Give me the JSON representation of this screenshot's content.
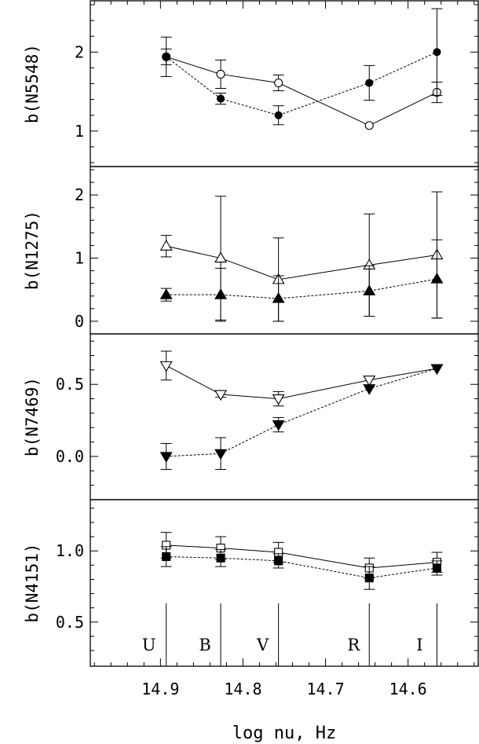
{
  "chart_data": {
    "type": "scatter",
    "xlabel": "log nu, Hz",
    "xlim": [
      14.985,
      14.515
    ],
    "xticks": [
      "14.9",
      "14.8",
      "14.7",
      "14.6"
    ],
    "xtick_values": [
      14.9,
      14.8,
      14.7,
      14.6
    ],
    "x": [
      14.893,
      14.827,
      14.757,
      14.647,
      14.565
    ],
    "bands": [
      "U",
      "B",
      "V",
      "R",
      "I"
    ],
    "line_styles": {
      "open": "solid",
      "filled": "dashed"
    },
    "panels": [
      {
        "ylabel": "b(N5548)",
        "ylim": [
          0.55,
          2.65
        ],
        "yticks": [
          "1",
          "2"
        ],
        "ytick_values": [
          1,
          2
        ],
        "series": [
          {
            "marker": "circle",
            "fill": "open",
            "values": [
              1.94,
              1.72,
              1.61,
              1.07,
              1.49
            ],
            "err": [
              0.25,
              0.18,
              0.1,
              0.0,
              0.13
            ]
          },
          {
            "marker": "circle",
            "fill": "filled",
            "values": [
              1.94,
              1.41,
              1.2,
              1.61,
              2.0
            ],
            "err": [
              0.1,
              0.07,
              0.12,
              0.22,
              0.55
            ]
          }
        ]
      },
      {
        "ylabel": "b(N1275)",
        "ylim": [
          -0.2,
          2.45
        ],
        "yticks": [
          "0",
          "1",
          "2"
        ],
        "ytick_values": [
          0,
          1,
          2
        ],
        "series": [
          {
            "marker": "triangle-up",
            "fill": "open",
            "values": [
              1.19,
              1.0,
              0.66,
              0.89,
              1.05
            ],
            "err": [
              0.17,
              0.98,
              0.66,
              0.81,
              1.0
            ]
          },
          {
            "marker": "triangle-up",
            "fill": "filled",
            "values": [
              0.42,
              0.42,
              0.36,
              0.48,
              0.67
            ],
            "err": [
              0.1,
              0.42,
              0.36,
              0.4,
              0.62
            ]
          }
        ]
      },
      {
        "ylabel": "b(N7469)",
        "ylim": [
          -0.3,
          0.85
        ],
        "yticks": [
          "0.0",
          "0.5"
        ],
        "ytick_values": [
          0.0,
          0.5
        ],
        "series": [
          {
            "marker": "triangle-down",
            "fill": "open",
            "values": [
              0.63,
              0.43,
              0.4,
              0.53,
              0.61
            ],
            "err": [
              0.1,
              0.02,
              0.05,
              0.0,
              0.0
            ]
          },
          {
            "marker": "triangle-down",
            "fill": "filled",
            "values": [
              0.0,
              0.02,
              0.22,
              0.47,
              0.61
            ],
            "err": [
              0.09,
              0.11,
              0.05,
              0.0,
              0.0
            ]
          }
        ]
      },
      {
        "ylabel": "b(N4151)",
        "ylim": [
          0.19,
          1.36
        ],
        "yticks": [
          "0.5",
          "1.0"
        ],
        "ytick_values": [
          0.5,
          1.0
        ],
        "series": [
          {
            "marker": "square",
            "fill": "open",
            "values": [
              1.04,
              1.02,
              0.99,
              0.88,
              0.92
            ],
            "err": [
              0.09,
              0.08,
              0.07,
              0.07,
              0.07
            ]
          },
          {
            "marker": "square",
            "fill": "filled",
            "values": [
              0.96,
              0.95,
              0.93,
              0.81,
              0.88
            ],
            "err": [
              0.07,
              0.06,
              0.05,
              0.08,
              0.05
            ]
          }
        ]
      }
    ]
  }
}
